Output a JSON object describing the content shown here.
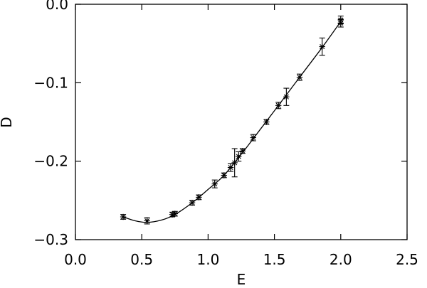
{
  "chart_data": {
    "type": "scatter",
    "xlabel": "E",
    "ylabel": "D",
    "xlim": [
      0.0,
      2.5
    ],
    "ylim": [
      -0.3,
      0.0
    ],
    "xticks": [
      0.0,
      0.5,
      1.0,
      1.5,
      2.0,
      2.5
    ],
    "xtick_labels": [
      "0.0",
      "0.5",
      "1.0",
      "1.5",
      "2.0",
      "2.5"
    ],
    "yticks": [
      0.0,
      -0.1,
      -0.2,
      -0.3
    ],
    "ytick_labels": [
      "0.0",
      "−0.1",
      "−0.2",
      "−0.3"
    ],
    "grid": false,
    "marker": "asterisk",
    "series": [
      {
        "points": [
          {
            "x": 0.36,
            "y": -0.271,
            "err": 0.003
          },
          {
            "x": 0.54,
            "y": -0.276,
            "err": 0.004
          },
          {
            "x": 0.73,
            "y": -0.268,
            "err": 0.003
          },
          {
            "x": 0.75,
            "y": -0.267,
            "err": 0.003
          },
          {
            "x": 0.88,
            "y": -0.253,
            "err": 0.003
          },
          {
            "x": 0.93,
            "y": -0.246,
            "err": 0.003
          },
          {
            "x": 1.05,
            "y": -0.229,
            "err": 0.005
          },
          {
            "x": 1.12,
            "y": -0.218,
            "err": 0.003
          },
          {
            "x": 1.17,
            "y": -0.208,
            "err": 0.005
          },
          {
            "x": 1.2,
            "y": -0.202,
            "err": 0.018
          },
          {
            "x": 1.23,
            "y": -0.194,
            "err": 0.006
          },
          {
            "x": 1.26,
            "y": -0.187,
            "err": 0.003
          },
          {
            "x": 1.34,
            "y": -0.17,
            "err": 0.004
          },
          {
            "x": 1.44,
            "y": -0.15,
            "err": 0.003
          },
          {
            "x": 1.53,
            "y": -0.129,
            "err": 0.004
          },
          {
            "x": 1.59,
            "y": -0.118,
            "err": 0.011
          },
          {
            "x": 1.69,
            "y": -0.093,
            "err": 0.004
          },
          {
            "x": 1.86,
            "y": -0.054,
            "err": 0.011
          },
          {
            "x": 2.0,
            "y": -0.024,
            "err": 0.005
          },
          {
            "x": 2.0,
            "y": -0.02,
            "err": 0.005
          }
        ],
        "fit_curve": {
          "x": [
            0.36,
            0.45,
            0.54,
            0.65,
            0.75,
            0.88,
            1.0,
            1.12,
            1.26,
            1.4,
            1.53,
            1.69,
            1.86,
            2.0
          ],
          "y": [
            -0.271,
            -0.276,
            -0.278,
            -0.275,
            -0.268,
            -0.253,
            -0.236,
            -0.218,
            -0.189,
            -0.158,
            -0.129,
            -0.093,
            -0.055,
            -0.022
          ]
        }
      }
    ]
  }
}
